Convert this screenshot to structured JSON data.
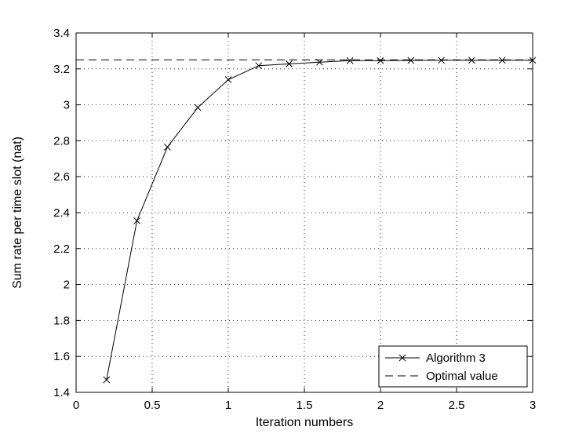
{
  "chart_data": {
    "type": "line",
    "title": "",
    "xlabel": "Iteration numbers",
    "ylabel": "Sum rate per time slot (nat)",
    "xlim": [
      0,
      3
    ],
    "ylim": [
      1.4,
      3.4
    ],
    "x_ticks": [
      "0",
      "0.5",
      "1",
      "1.5",
      "2",
      "2.5",
      "3"
    ],
    "y_ticks": [
      "1.4",
      "1.6",
      "1.8",
      "2",
      "2.2",
      "2.4",
      "2.6",
      "2.8",
      "3",
      "3.2",
      "3.4"
    ],
    "grid": true,
    "legend_position": "bottom-right",
    "series": [
      {
        "name": "Algorithm 3",
        "style": "solid-x-marker",
        "color": "#000000",
        "x": [
          0.2,
          0.4,
          0.6,
          0.8,
          1.0,
          1.2,
          1.4,
          1.6,
          1.8,
          2.0,
          2.2,
          2.4,
          2.6,
          2.8,
          3.0
        ],
        "y": [
          1.47,
          2.355,
          2.765,
          2.985,
          3.14,
          3.218,
          3.228,
          3.237,
          3.246,
          3.246,
          3.247,
          3.248,
          3.248,
          3.248,
          3.248
        ]
      },
      {
        "name": "Optimal value",
        "style": "dashed",
        "color": "#000000",
        "x": [
          0.0,
          3.0
        ],
        "y": [
          3.25,
          3.25
        ]
      }
    ]
  }
}
